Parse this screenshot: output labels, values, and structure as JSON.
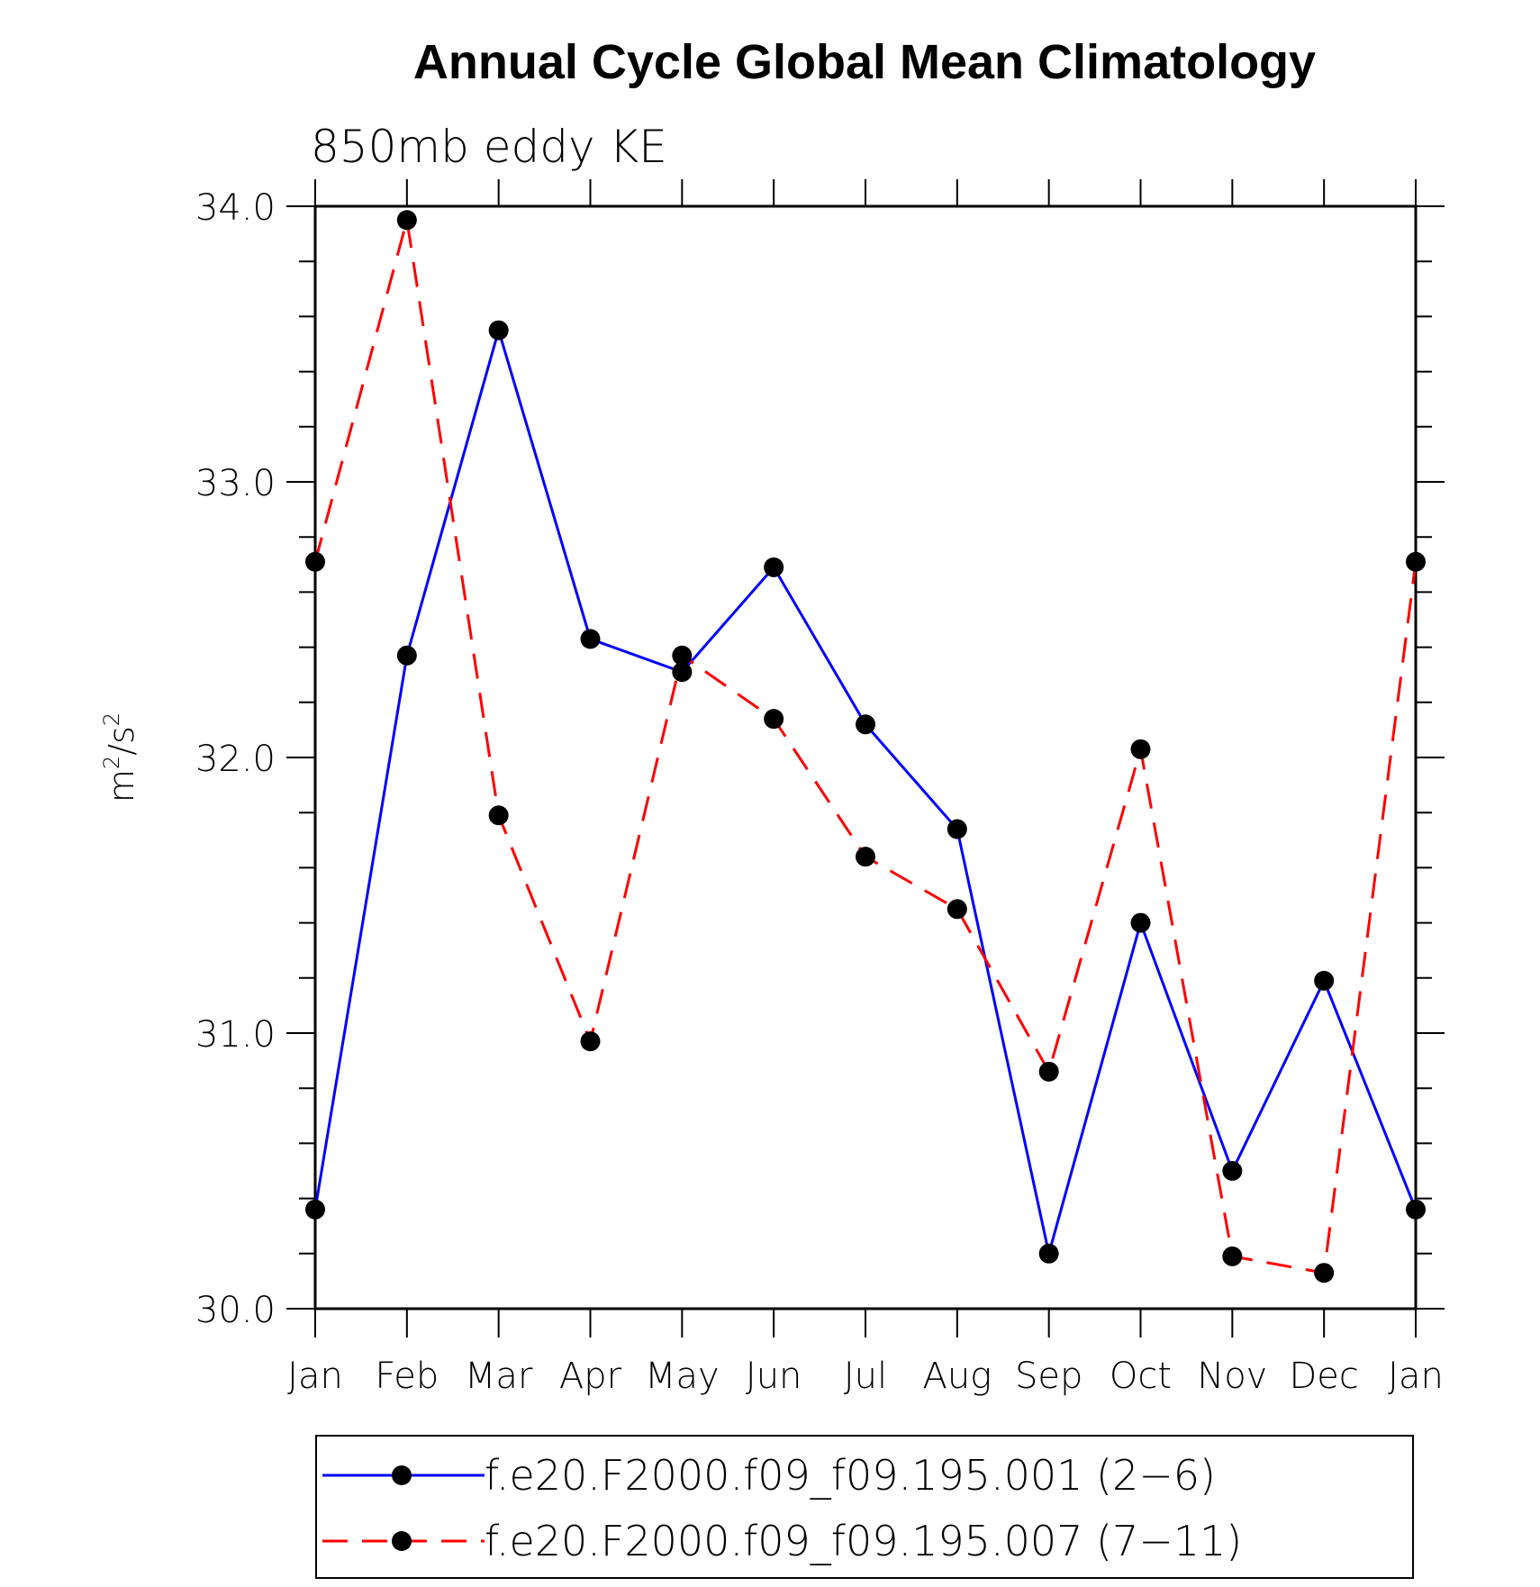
{
  "chart_data": {
    "type": "line",
    "title": "Annual Cycle Global Mean Climatology",
    "subtitle": "850mb eddy KE",
    "ylabel_base": "m",
    "ylabel_sup1": "2",
    "ylabel_mid": "/s",
    "ylabel_sup2": "2",
    "ylim": [
      30.0,
      34.0
    ],
    "yticks": [
      "30.0",
      "31.0",
      "32.0",
      "33.0",
      "34.0"
    ],
    "categories": [
      "Jan",
      "Feb",
      "Mar",
      "Apr",
      "May",
      "Jun",
      "Jul",
      "Aug",
      "Sep",
      "Oct",
      "Nov",
      "Dec",
      "Jan"
    ],
    "grid": false,
    "legend_position": "bottom",
    "series": [
      {
        "name": "f.e20.F2000.f09_f09.195.001 (2−6)",
        "color": "#0000ff",
        "dash": "solid",
        "values": [
          30.36,
          32.37,
          33.55,
          32.43,
          32.31,
          32.69,
          32.12,
          31.74,
          30.2,
          31.4,
          30.5,
          31.19,
          30.36
        ]
      },
      {
        "name": "f.e20.F2000.f09_f09.195.007 (7−11)",
        "color": "#ff0000",
        "dash": "dashed",
        "values": [
          32.71,
          33.95,
          31.79,
          30.97,
          32.37,
          32.14,
          31.64,
          31.45,
          30.86,
          32.03,
          30.19,
          30.13,
          32.71
        ]
      }
    ]
  }
}
